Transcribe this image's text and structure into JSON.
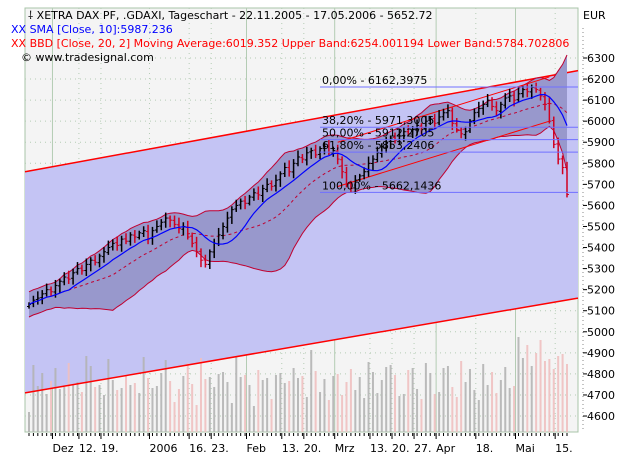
{
  "chart_data": {
    "type": "ohlc",
    "title": "XETRA DAX PF, .GDAXI, Tageschart - 22.11.2005 - 17.05.2006 - 5652.72",
    "currency": "EUR",
    "sma_legend": "SMA [Close, 10]:5987.236",
    "bbd_legend": "BBD [Close, 20, 2] Moving Average:6019.352 Upper Band:6254.001194 Lower Band:5784.702806",
    "copyright": "© www.tradesignal.com",
    "ylim": [
      4530,
      6360
    ],
    "y_ticks": [
      6300,
      6200,
      6100,
      6000,
      5900,
      5800,
      5700,
      5600,
      5500,
      5400,
      5300,
      5200,
      5100,
      5000,
      4900,
      4800,
      4700,
      4600
    ],
    "x_ticks": [
      {
        "label": "Dez",
        "i": 6
      },
      {
        "label": "12.",
        "i": 12
      },
      {
        "label": "19.",
        "i": 17
      },
      {
        "label": "2006",
        "i": 28
      },
      {
        "label": "16.",
        "i": 37
      },
      {
        "label": "23.",
        "i": 42
      },
      {
        "label": "Feb",
        "i": 50
      },
      {
        "label": "13.",
        "i": 58
      },
      {
        "label": "20.",
        "i": 63
      },
      {
        "label": "Mrz",
        "i": 70
      },
      {
        "label": "13.",
        "i": 78
      },
      {
        "label": "20.",
        "i": 83
      },
      {
        "label": "27.",
        "i": 88
      },
      {
        "label": "Apr",
        "i": 93
      },
      {
        "label": "18.",
        "i": 102
      },
      {
        "label": "Mai",
        "i": 111
      },
      {
        "label": "15.",
        "i": 120
      }
    ],
    "closes": [
      5130,
      5150,
      5160,
      5180,
      5200,
      5190,
      5220,
      5240,
      5260,
      5250,
      5280,
      5300,
      5290,
      5320,
      5340,
      5330,
      5360,
      5380,
      5400,
      5420,
      5410,
      5440,
      5430,
      5460,
      5450,
      5470,
      5480,
      5440,
      5480,
      5500,
      5520,
      5540,
      5530,
      5510,
      5490,
      5500,
      5450,
      5420,
      5380,
      5340,
      5320,
      5380,
      5420,
      5460,
      5500,
      5540,
      5580,
      5600,
      5620,
      5610,
      5640,
      5660,
      5650,
      5680,
      5700,
      5690,
      5720,
      5750,
      5780,
      5760,
      5800,
      5830,
      5820,
      5850,
      5860,
      5840,
      5870,
      5880,
      5850,
      5860,
      5820,
      5760,
      5700,
      5680,
      5720,
      5740,
      5760,
      5800,
      5820,
      5850,
      5880,
      5900,
      5920,
      5910,
      5930,
      5950,
      5940,
      5960,
      5980,
      5970,
      6000,
      6010,
      5990,
      6020,
      6040,
      6050,
      5990,
      5960,
      5940,
      5950,
      6000,
      6040,
      6060,
      6080,
      6100,
      6070,
      6050,
      6080,
      6110,
      6120,
      6100,
      6130,
      6150,
      6140,
      6160,
      6150,
      6120,
      6080,
      6000,
      5890,
      5820,
      5780,
      5652
    ],
    "fibonacci": [
      {
        "label": "0,00% - 6162,3975",
        "value": 6162.3975
      },
      {
        "label": "38,20% - 5971,3005",
        "value": 5971.3005
      },
      {
        "label": "50,00% - 5912,2705",
        "value": 5912.2705
      },
      {
        "label": "61,80% - 5853,2406",
        "value": 5853.2406
      },
      {
        "label": "100,00% - 5662,1436",
        "value": 5662.1436
      }
    ],
    "channel": {
      "upper": [
        5760,
        6240
      ],
      "lower": [
        4710,
        5160
      ]
    },
    "colors": {
      "up": "#000000",
      "down": "#d00020",
      "sma": "#0000ff",
      "band": "#c00030",
      "fib": "#7070ff",
      "channel_fill": "#c4c4f4",
      "band_fill": "#9898cc",
      "grid": "#b4ccb4"
    }
  }
}
